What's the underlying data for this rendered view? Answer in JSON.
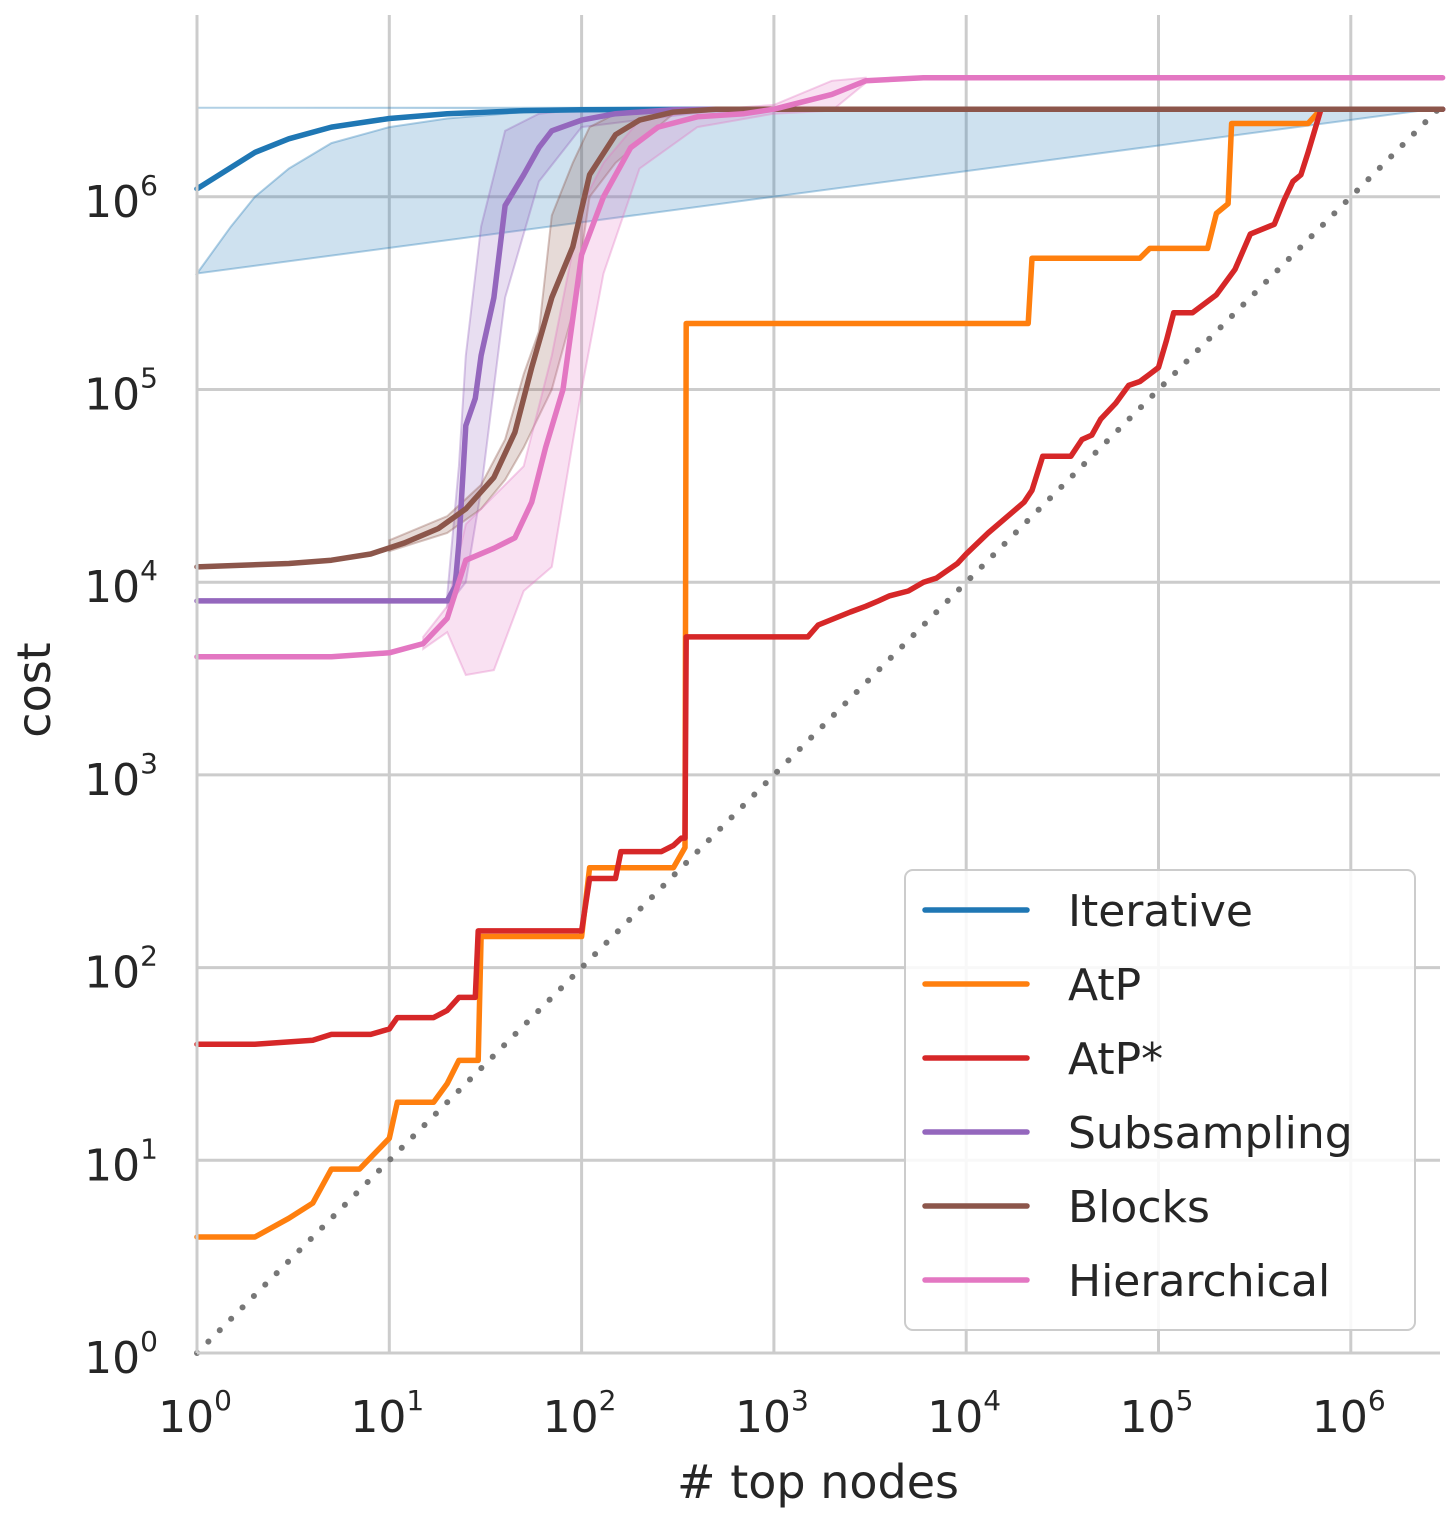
{
  "chart_data": {
    "type": "line",
    "title": "",
    "xlabel": "# top nodes",
    "ylabel": "cost",
    "xscale": "log",
    "yscale": "log",
    "xlim": [
      1,
      3000000
    ],
    "ylim": [
      1,
      5000000
    ],
    "grid": true,
    "legend_position": "lower-right",
    "x_ticks": [
      {
        "base": "10",
        "exp": "0",
        "value": 1
      },
      {
        "base": "10",
        "exp": "1",
        "value": 10
      },
      {
        "base": "10",
        "exp": "2",
        "value": 100
      },
      {
        "base": "10",
        "exp": "3",
        "value": 1000
      },
      {
        "base": "10",
        "exp": "4",
        "value": 10000
      },
      {
        "base": "10",
        "exp": "5",
        "value": 100000
      },
      {
        "base": "10",
        "exp": "6",
        "value": 1000000
      }
    ],
    "y_ticks": [
      {
        "base": "10",
        "exp": "0",
        "value": 1
      },
      {
        "base": "10",
        "exp": "1",
        "value": 10
      },
      {
        "base": "10",
        "exp": "2",
        "value": 100
      },
      {
        "base": "10",
        "exp": "3",
        "value": 1000
      },
      {
        "base": "10",
        "exp": "4",
        "value": 10000
      },
      {
        "base": "10",
        "exp": "5",
        "value": 100000
      },
      {
        "base": "10",
        "exp": "6",
        "value": 1000000
      }
    ],
    "reference_line": {
      "style": "dotted",
      "color": "#777777",
      "points": [
        [
          1,
          1
        ],
        [
          3000000,
          3000000
        ]
      ]
    },
    "series": [
      {
        "name": "Iterative",
        "color": "#1f77b4",
        "points": [
          [
            1,
            1100000
          ],
          [
            2,
            1700000
          ],
          [
            3,
            2000000
          ],
          [
            5,
            2300000
          ],
          [
            10,
            2550000
          ],
          [
            20,
            2700000
          ],
          [
            50,
            2800000
          ],
          [
            100,
            2830000
          ],
          [
            1000,
            2850000
          ],
          [
            3000000,
            2850000
          ]
        ],
        "band_upper": [
          [
            1,
            2900000
          ],
          [
            3000000,
            2900000
          ]
        ],
        "band_lower": [
          [
            1,
            400000
          ],
          [
            1.5,
            700000
          ],
          [
            2,
            1000000
          ],
          [
            3,
            1400000
          ],
          [
            5,
            1900000
          ],
          [
            10,
            2300000
          ],
          [
            20,
            2550000
          ],
          [
            50,
            2750000
          ],
          [
            100,
            2800000
          ],
          [
            1000,
            2850000
          ],
          [
            3000000,
            2850000
          ]
        ]
      },
      {
        "name": "AtP",
        "color": "#ff7f0e",
        "points": [
          [
            1,
            4
          ],
          [
            2,
            4
          ],
          [
            3,
            5
          ],
          [
            4,
            6
          ],
          [
            5,
            9
          ],
          [
            7,
            9
          ],
          [
            10,
            13
          ],
          [
            11,
            20
          ],
          [
            17,
            20
          ],
          [
            20,
            25
          ],
          [
            23,
            33
          ],
          [
            27,
            33
          ],
          [
            29,
            33
          ],
          [
            30,
            145
          ],
          [
            100,
            145
          ],
          [
            110,
            330
          ],
          [
            300,
            330
          ],
          [
            345,
            420
          ],
          [
            350,
            220000
          ],
          [
            21000,
            220000
          ],
          [
            22000,
            480000
          ],
          [
            80000,
            480000
          ],
          [
            90000,
            540000
          ],
          [
            180000,
            540000
          ],
          [
            200000,
            820000
          ],
          [
            230000,
            920000
          ],
          [
            240000,
            2400000
          ],
          [
            600000,
            2400000
          ],
          [
            700000,
            2850000
          ],
          [
            3000000,
            2850000
          ]
        ]
      },
      {
        "name": "AtP*",
        "color": "#d62728",
        "points": [
          [
            1,
            40
          ],
          [
            2,
            40
          ],
          [
            4,
            42
          ],
          [
            5,
            45
          ],
          [
            8,
            45
          ],
          [
            10,
            48
          ],
          [
            11,
            55
          ],
          [
            17,
            55
          ],
          [
            20,
            60
          ],
          [
            23,
            70
          ],
          [
            27,
            70
          ],
          [
            28,
            70
          ],
          [
            29,
            155
          ],
          [
            100,
            155
          ],
          [
            110,
            290
          ],
          [
            150,
            290
          ],
          [
            160,
            400
          ],
          [
            260,
            400
          ],
          [
            300,
            430
          ],
          [
            330,
            470
          ],
          [
            345,
            470
          ],
          [
            350,
            5200
          ],
          [
            1500,
            5200
          ],
          [
            1700,
            6000
          ],
          [
            2500,
            7000
          ],
          [
            3000,
            7500
          ],
          [
            3500,
            8000
          ],
          [
            4000,
            8500
          ],
          [
            5000,
            9000
          ],
          [
            6000,
            10000
          ],
          [
            7000,
            10500
          ],
          [
            9000,
            12500
          ],
          [
            10000,
            14000
          ],
          [
            13000,
            18000
          ],
          [
            20000,
            26000
          ],
          [
            22000,
            30000
          ],
          [
            25000,
            45000
          ],
          [
            35000,
            45000
          ],
          [
            40000,
            55000
          ],
          [
            45000,
            58000
          ],
          [
            50000,
            70000
          ],
          [
            60000,
            85000
          ],
          [
            70000,
            105000
          ],
          [
            80000,
            110000
          ],
          [
            90000,
            120000
          ],
          [
            100000,
            130000
          ],
          [
            110000,
            180000
          ],
          [
            120000,
            250000
          ],
          [
            150000,
            250000
          ],
          [
            200000,
            310000
          ],
          [
            250000,
            420000
          ],
          [
            300000,
            640000
          ],
          [
            400000,
            720000
          ],
          [
            450000,
            960000
          ],
          [
            500000,
            1200000
          ],
          [
            550000,
            1300000
          ],
          [
            600000,
            1700000
          ],
          [
            700000,
            2850000
          ],
          [
            3000000,
            2850000
          ]
        ]
      },
      {
        "name": "Subsampling",
        "color": "#9467bd",
        "points": [
          [
            1,
            8000
          ],
          [
            20,
            8000
          ],
          [
            22,
            9500
          ],
          [
            23,
            16000
          ],
          [
            25,
            65000
          ],
          [
            28,
            90000
          ],
          [
            30,
            150000
          ],
          [
            35,
            300000
          ],
          [
            40,
            900000
          ],
          [
            50,
            1300000
          ],
          [
            60,
            1800000
          ],
          [
            70,
            2200000
          ],
          [
            100,
            2500000
          ],
          [
            150,
            2700000
          ],
          [
            300,
            2830000
          ],
          [
            500,
            2850000
          ],
          [
            3000000,
            2850000
          ]
        ],
        "band_upper": [
          [
            20,
            8500
          ],
          [
            23,
            40000
          ],
          [
            25,
            150000
          ],
          [
            30,
            700000
          ],
          [
            40,
            2200000
          ],
          [
            60,
            2700000
          ],
          [
            100,
            2850000
          ],
          [
            500,
            2900000
          ]
        ],
        "band_lower": [
          [
            500,
            2800000
          ],
          [
            100,
            2300000
          ],
          [
            60,
            1200000
          ],
          [
            40,
            300000
          ],
          [
            30,
            30000
          ],
          [
            25,
            10000
          ],
          [
            20,
            7500
          ]
        ]
      },
      {
        "name": "Blocks",
        "color": "#8c564b",
        "points": [
          [
            1,
            12000
          ],
          [
            3,
            12500
          ],
          [
            5,
            13000
          ],
          [
            8,
            14000
          ],
          [
            12,
            16000
          ],
          [
            18,
            19000
          ],
          [
            25,
            24000
          ],
          [
            35,
            35000
          ],
          [
            45,
            60000
          ],
          [
            55,
            130000
          ],
          [
            70,
            300000
          ],
          [
            90,
            550000
          ],
          [
            110,
            1300000
          ],
          [
            150,
            2100000
          ],
          [
            200,
            2500000
          ],
          [
            300,
            2750000
          ],
          [
            500,
            2850000
          ],
          [
            3000000,
            2850000
          ]
        ],
        "band_upper": [
          [
            10,
            16500
          ],
          [
            20,
            22000
          ],
          [
            30,
            32000
          ],
          [
            40,
            55000
          ],
          [
            50,
            120000
          ],
          [
            60,
            200000
          ],
          [
            70,
            800000
          ],
          [
            90,
            1500000
          ],
          [
            110,
            2300000
          ],
          [
            150,
            2700000
          ],
          [
            300,
            2850000
          ]
        ],
        "band_lower": [
          [
            300,
            2700000
          ],
          [
            150,
            1500000
          ],
          [
            110,
            1000000
          ],
          [
            90,
            250000
          ],
          [
            70,
            100000
          ],
          [
            50,
            50000
          ],
          [
            40,
            34000
          ],
          [
            30,
            24000
          ],
          [
            20,
            18000
          ],
          [
            10,
            14500
          ]
        ]
      },
      {
        "name": "Hierarchical",
        "color": "#e377c2",
        "points": [
          [
            1,
            4100
          ],
          [
            5,
            4100
          ],
          [
            10,
            4300
          ],
          [
            15,
            4800
          ],
          [
            20,
            6500
          ],
          [
            25,
            13000
          ],
          [
            35,
            15000
          ],
          [
            45,
            17000
          ],
          [
            55,
            26000
          ],
          [
            65,
            50000
          ],
          [
            80,
            100000
          ],
          [
            100,
            500000
          ],
          [
            130,
            1000000
          ],
          [
            180,
            1800000
          ],
          [
            250,
            2300000
          ],
          [
            400,
            2600000
          ],
          [
            700,
            2700000
          ],
          [
            1000,
            2850000
          ],
          [
            2000,
            3400000
          ],
          [
            3000,
            4000000
          ],
          [
            6000,
            4150000
          ],
          [
            3000000,
            4150000
          ]
        ],
        "band_upper": [
          [
            15,
            5200
          ],
          [
            20,
            7500
          ],
          [
            25,
            20000
          ],
          [
            35,
            28000
          ],
          [
            50,
            40000
          ],
          [
            70,
            150000
          ],
          [
            100,
            900000
          ],
          [
            130,
            1500000
          ],
          [
            200,
            2500000
          ],
          [
            400,
            2800000
          ],
          [
            1000,
            3000000
          ],
          [
            2000,
            4000000
          ],
          [
            3000,
            4150000
          ]
        ],
        "band_lower": [
          [
            3000,
            3900000
          ],
          [
            2000,
            2800000
          ],
          [
            1000,
            2700000
          ],
          [
            400,
            2300000
          ],
          [
            200,
            1400000
          ],
          [
            130,
            400000
          ],
          [
            100,
            100000
          ],
          [
            70,
            12000
          ],
          [
            50,
            9000
          ],
          [
            35,
            3500
          ],
          [
            25,
            3300
          ],
          [
            20,
            5500
          ],
          [
            15,
            4500
          ]
        ]
      }
    ]
  }
}
